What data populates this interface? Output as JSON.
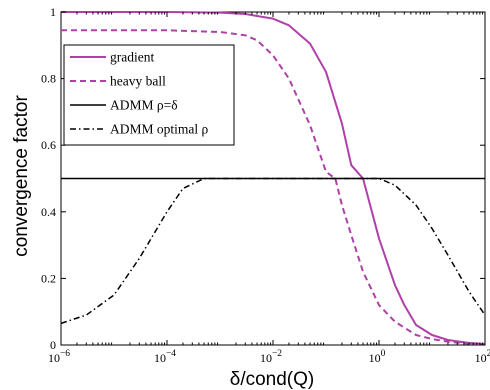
{
  "chart_data": {
    "type": "line",
    "title": "",
    "xlabel": "δ/cond(Q)",
    "ylabel": "convergence factor",
    "x_scale": "log",
    "xlim": [
      1e-06,
      100
    ],
    "ylim": [
      0,
      1
    ],
    "grid": false,
    "legend_position": "upper-left",
    "x_ticks": [
      {
        "base": "10",
        "exp": "−6"
      },
      {
        "base": "10",
        "exp": "−4"
      },
      {
        "base": "10",
        "exp": "−2"
      },
      {
        "base": "10",
        "exp": "0"
      },
      {
        "base": "10",
        "exp": "2"
      }
    ],
    "y_ticks": [
      "0",
      "0.2",
      "0.4",
      "0.6",
      "0.8",
      "1"
    ],
    "y_tick_values": [
      0,
      0.2,
      0.4,
      0.6,
      0.8,
      1
    ],
    "series": [
      {
        "name": "gradient",
        "color": "#b040a8",
        "style": "solid",
        "x": [
          1e-06,
          0.0001,
          0.001,
          0.003,
          0.01,
          0.02,
          0.05,
          0.1,
          0.2,
          0.3,
          0.5,
          1,
          2,
          3,
          5,
          10,
          20,
          50,
          100
        ],
        "y": [
          1.0,
          1.0,
          0.998,
          0.994,
          0.98,
          0.96,
          0.905,
          0.82,
          0.665,
          0.54,
          0.5,
          0.32,
          0.18,
          0.12,
          0.06,
          0.03,
          0.015,
          0.006,
          0.003
        ]
      },
      {
        "name": "heavy ball",
        "color": "#b040a8",
        "style": "dashed",
        "x": [
          1e-06,
          0.0001,
          0.001,
          0.003,
          0.005,
          0.01,
          0.02,
          0.05,
          0.1,
          0.15,
          0.2,
          0.3,
          0.5,
          1,
          2,
          5,
          10,
          20,
          50,
          100
        ],
        "y": [
          0.945,
          0.945,
          0.94,
          0.93,
          0.915,
          0.87,
          0.8,
          0.66,
          0.52,
          0.5,
          0.42,
          0.33,
          0.22,
          0.12,
          0.07,
          0.03,
          0.018,
          0.01,
          0.004,
          0.002
        ]
      },
      {
        "name": "ADMM ρ=δ",
        "color": "#000000",
        "style": "solid",
        "x": [
          1e-06,
          100
        ],
        "y": [
          0.5,
          0.5
        ]
      },
      {
        "name": "ADMM optimal ρ",
        "color": "#000000",
        "style": "dashdot",
        "x": [
          1e-06,
          3e-06,
          1e-05,
          3e-05,
          0.0001,
          0.0002,
          0.0005,
          0.001,
          1,
          2,
          5,
          10,
          20,
          50,
          100
        ],
        "y": [
          0.065,
          0.09,
          0.15,
          0.26,
          0.4,
          0.47,
          0.5,
          0.5,
          0.5,
          0.48,
          0.42,
          0.35,
          0.27,
          0.16,
          0.09
        ]
      }
    ]
  }
}
